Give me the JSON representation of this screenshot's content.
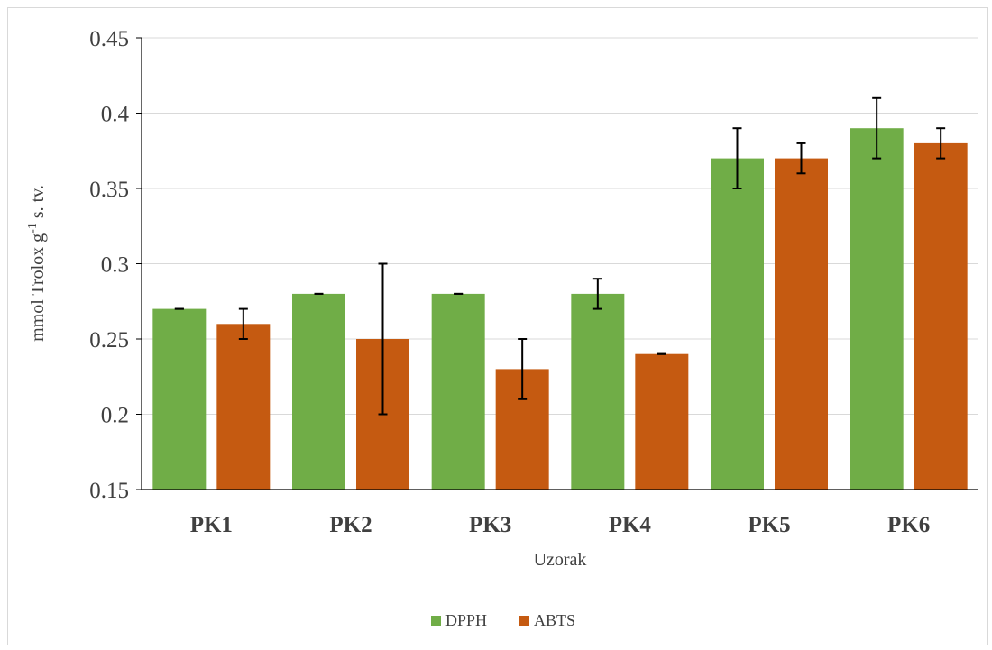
{
  "chart_data": {
    "type": "bar",
    "categories": [
      "PK1",
      "PK2",
      "PK3",
      "PK4",
      "PK5",
      "PK6"
    ],
    "series": [
      {
        "name": "DPPH",
        "color": "#70ad47",
        "values": [
          0.27,
          0.28,
          0.28,
          0.28,
          0.37,
          0.39
        ],
        "errors": [
          0.0,
          0.0,
          0.0,
          0.01,
          0.02,
          0.02
        ]
      },
      {
        "name": "ABTS",
        "color": "#c55a11",
        "values": [
          0.26,
          0.25,
          0.23,
          0.24,
          0.37,
          0.38
        ],
        "errors": [
          0.01,
          0.05,
          0.02,
          0.0,
          0.01,
          0.01
        ]
      }
    ],
    "ylim": [
      0.15,
      0.45
    ],
    "yticks": [
      "0.15",
      "0.2",
      "0.25",
      "0.3",
      "0.35",
      "0.4",
      "0.45"
    ],
    "ylabel_main": "mmol Trolox g",
    "ylabel_sup": "-1",
    "ylabel_rest": " s. tv.",
    "xlabel": "Uzorak",
    "grid": true,
    "legend_position": "bottom"
  }
}
